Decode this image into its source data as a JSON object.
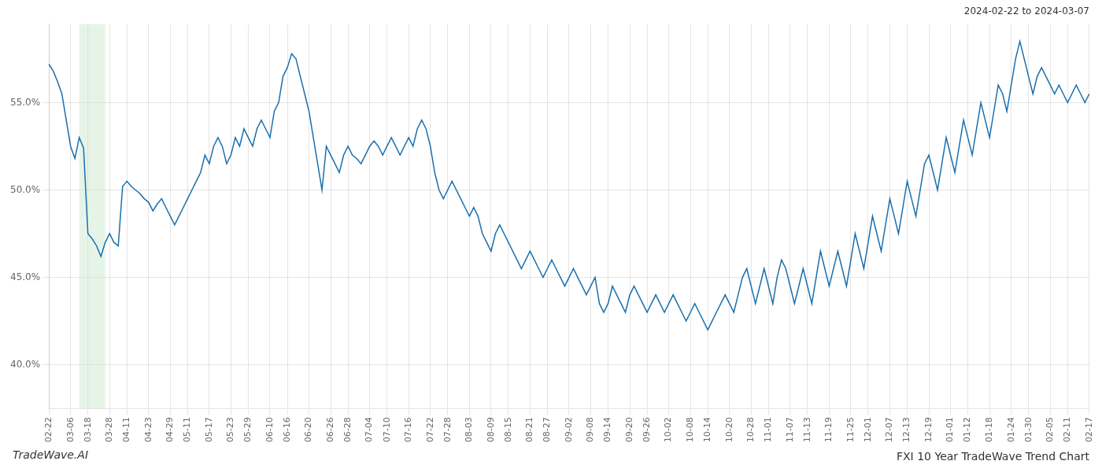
{
  "chart_data": {
    "type": "line",
    "title": "FXI 10 Year TradeWave Trend Chart",
    "subtitle": "2024-02-22 to 2024-03-07",
    "annotations": [
      "TradeWave.AI"
    ],
    "color": "#1a6fad",
    "grid": true,
    "ylim": [
      37.5,
      59.5
    ],
    "yticks": [
      {
        "value": 40.0,
        "label": "40.0%"
      },
      {
        "value": 45.0,
        "label": "45.0%"
      },
      {
        "value": 50.0,
        "label": "50.0%"
      },
      {
        "value": 55.0,
        "label": "55.0%"
      }
    ],
    "shaded_span": {
      "from": 7,
      "to": 13,
      "color": "#c8e6c9"
    },
    "categories": [
      "02-22",
      null,
      null,
      null,
      null,
      "03-06",
      null,
      null,
      null,
      "03-18",
      null,
      null,
      null,
      null,
      "03-28",
      null,
      null,
      null,
      "04-11",
      null,
      null,
      null,
      null,
      "04-23",
      null,
      null,
      null,
      null,
      "04-29",
      null,
      null,
      null,
      "05-11",
      null,
      null,
      null,
      null,
      "05-17",
      null,
      null,
      null,
      null,
      "05-23",
      null,
      null,
      null,
      "05-29",
      null,
      null,
      null,
      null,
      "06-10",
      null,
      null,
      null,
      "06-16",
      null,
      null,
      null,
      null,
      "06-20",
      null,
      null,
      null,
      null,
      "06-26",
      null,
      null,
      null,
      "06-28",
      null,
      null,
      null,
      null,
      "07-04",
      null,
      null,
      null,
      "07-10",
      null,
      null,
      null,
      null,
      "07-16",
      null,
      null,
      null,
      null,
      "07-22",
      null,
      null,
      null,
      "07-28",
      null,
      null,
      null,
      null,
      "08-03",
      null,
      null,
      null,
      null,
      "08-09",
      null,
      null,
      null,
      "08-15",
      null,
      null,
      null,
      null,
      "08-21",
      null,
      null,
      null,
      "08-27",
      null,
      null,
      null,
      null,
      "09-02",
      null,
      null,
      null,
      null,
      "09-08",
      null,
      null,
      null,
      "09-14",
      null,
      null,
      null,
      null,
      "09-20",
      null,
      null,
      null,
      "09-26",
      null,
      null,
      null,
      null,
      "10-02",
      null,
      null,
      null,
      null,
      "10-08",
      null,
      null,
      null,
      "10-14",
      null,
      null,
      null,
      null,
      "10-20",
      null,
      null,
      null,
      null,
      "10-28",
      null,
      null,
      null,
      "11-01",
      null,
      null,
      null,
      null,
      "11-07",
      null,
      null,
      null,
      "11-13",
      null,
      null,
      null,
      null,
      "11-19",
      null,
      null,
      null,
      null,
      "11-25",
      null,
      null,
      null,
      "12-01",
      null,
      null,
      null,
      null,
      "12-07",
      null,
      null,
      null,
      "12-13",
      null,
      null,
      null,
      null,
      "12-19",
      null,
      null,
      null,
      null,
      "01-01",
      null,
      null,
      null,
      "01-12",
      null,
      null,
      null,
      null,
      "01-18",
      null,
      null,
      null,
      null,
      "01-24",
      null,
      null,
      null,
      "01-30",
      null,
      null,
      null,
      null,
      "02-05",
      null,
      null,
      null,
      "02-11",
      null,
      null,
      null,
      null,
      "02-17"
    ],
    "values": [
      57.2,
      56.8,
      56.2,
      55.5,
      54.0,
      52.5,
      51.8,
      53.0,
      52.4,
      47.5,
      47.2,
      46.8,
      46.2,
      47.0,
      47.5,
      47.0,
      46.8,
      50.2,
      50.5,
      50.2,
      50.0,
      49.8,
      49.5,
      49.3,
      48.8,
      49.2,
      49.5,
      49.0,
      48.5,
      48.0,
      48.5,
      49.0,
      49.5,
      50.0,
      50.5,
      51.0,
      52.0,
      51.5,
      52.5,
      53.0,
      52.5,
      51.5,
      52.0,
      53.0,
      52.5,
      53.5,
      53.0,
      52.5,
      53.5,
      54.0,
      53.5,
      53.0,
      54.5,
      55.0,
      56.5,
      57.0,
      57.8,
      57.5,
      56.5,
      55.5,
      54.5,
      53.0,
      51.5,
      50.0,
      52.5,
      52.0,
      51.5,
      51.0,
      52.0,
      52.5,
      52.0,
      51.8,
      51.5,
      52.0,
      52.5,
      52.8,
      52.5,
      52.0,
      52.5,
      53.0,
      52.5,
      52.0,
      52.5,
      53.0,
      52.5,
      53.5,
      54.0,
      53.5,
      52.5,
      51.0,
      50.0,
      49.5,
      50.0,
      50.5,
      50.0,
      49.5,
      49.0,
      48.5,
      49.0,
      48.5,
      47.5,
      47.0,
      46.5,
      47.5,
      48.0,
      47.5,
      47.0,
      46.5,
      46.0,
      45.5,
      46.0,
      46.5,
      46.0,
      45.5,
      45.0,
      45.5,
      46.0,
      45.5,
      45.0,
      44.5,
      45.0,
      45.5,
      45.0,
      44.5,
      44.0,
      44.5,
      45.0,
      43.5,
      43.0,
      43.5,
      44.5,
      44.0,
      43.5,
      43.0,
      44.0,
      44.5,
      44.0,
      43.5,
      43.0,
      43.5,
      44.0,
      43.5,
      43.0,
      43.5,
      44.0,
      43.5,
      43.0,
      42.5,
      43.0,
      43.5,
      43.0,
      42.5,
      42.0,
      42.5,
      43.0,
      43.5,
      44.0,
      43.5,
      43.0,
      44.0,
      45.0,
      45.5,
      44.5,
      43.5,
      44.5,
      45.5,
      44.5,
      43.5,
      45.0,
      46.0,
      45.5,
      44.5,
      43.5,
      44.5,
      45.5,
      44.5,
      43.5,
      45.0,
      46.5,
      45.5,
      44.5,
      45.5,
      46.5,
      45.5,
      44.5,
      46.0,
      47.5,
      46.5,
      45.5,
      47.0,
      48.5,
      47.5,
      46.5,
      48.0,
      49.5,
      48.5,
      47.5,
      49.0,
      50.5,
      49.5,
      48.5,
      50.0,
      51.5,
      52.0,
      51.0,
      50.0,
      51.5,
      53.0,
      52.0,
      51.0,
      52.5,
      54.0,
      53.0,
      52.0,
      53.5,
      55.0,
      54.0,
      53.0,
      54.5,
      56.0,
      55.5,
      54.5,
      56.0,
      57.5,
      58.5,
      57.5,
      56.5,
      55.5,
      56.5,
      57.0,
      56.5,
      56.0,
      55.5,
      56.0,
      55.5,
      55.0,
      55.5,
      56.0,
      55.5,
      55.0,
      55.5
    ]
  }
}
